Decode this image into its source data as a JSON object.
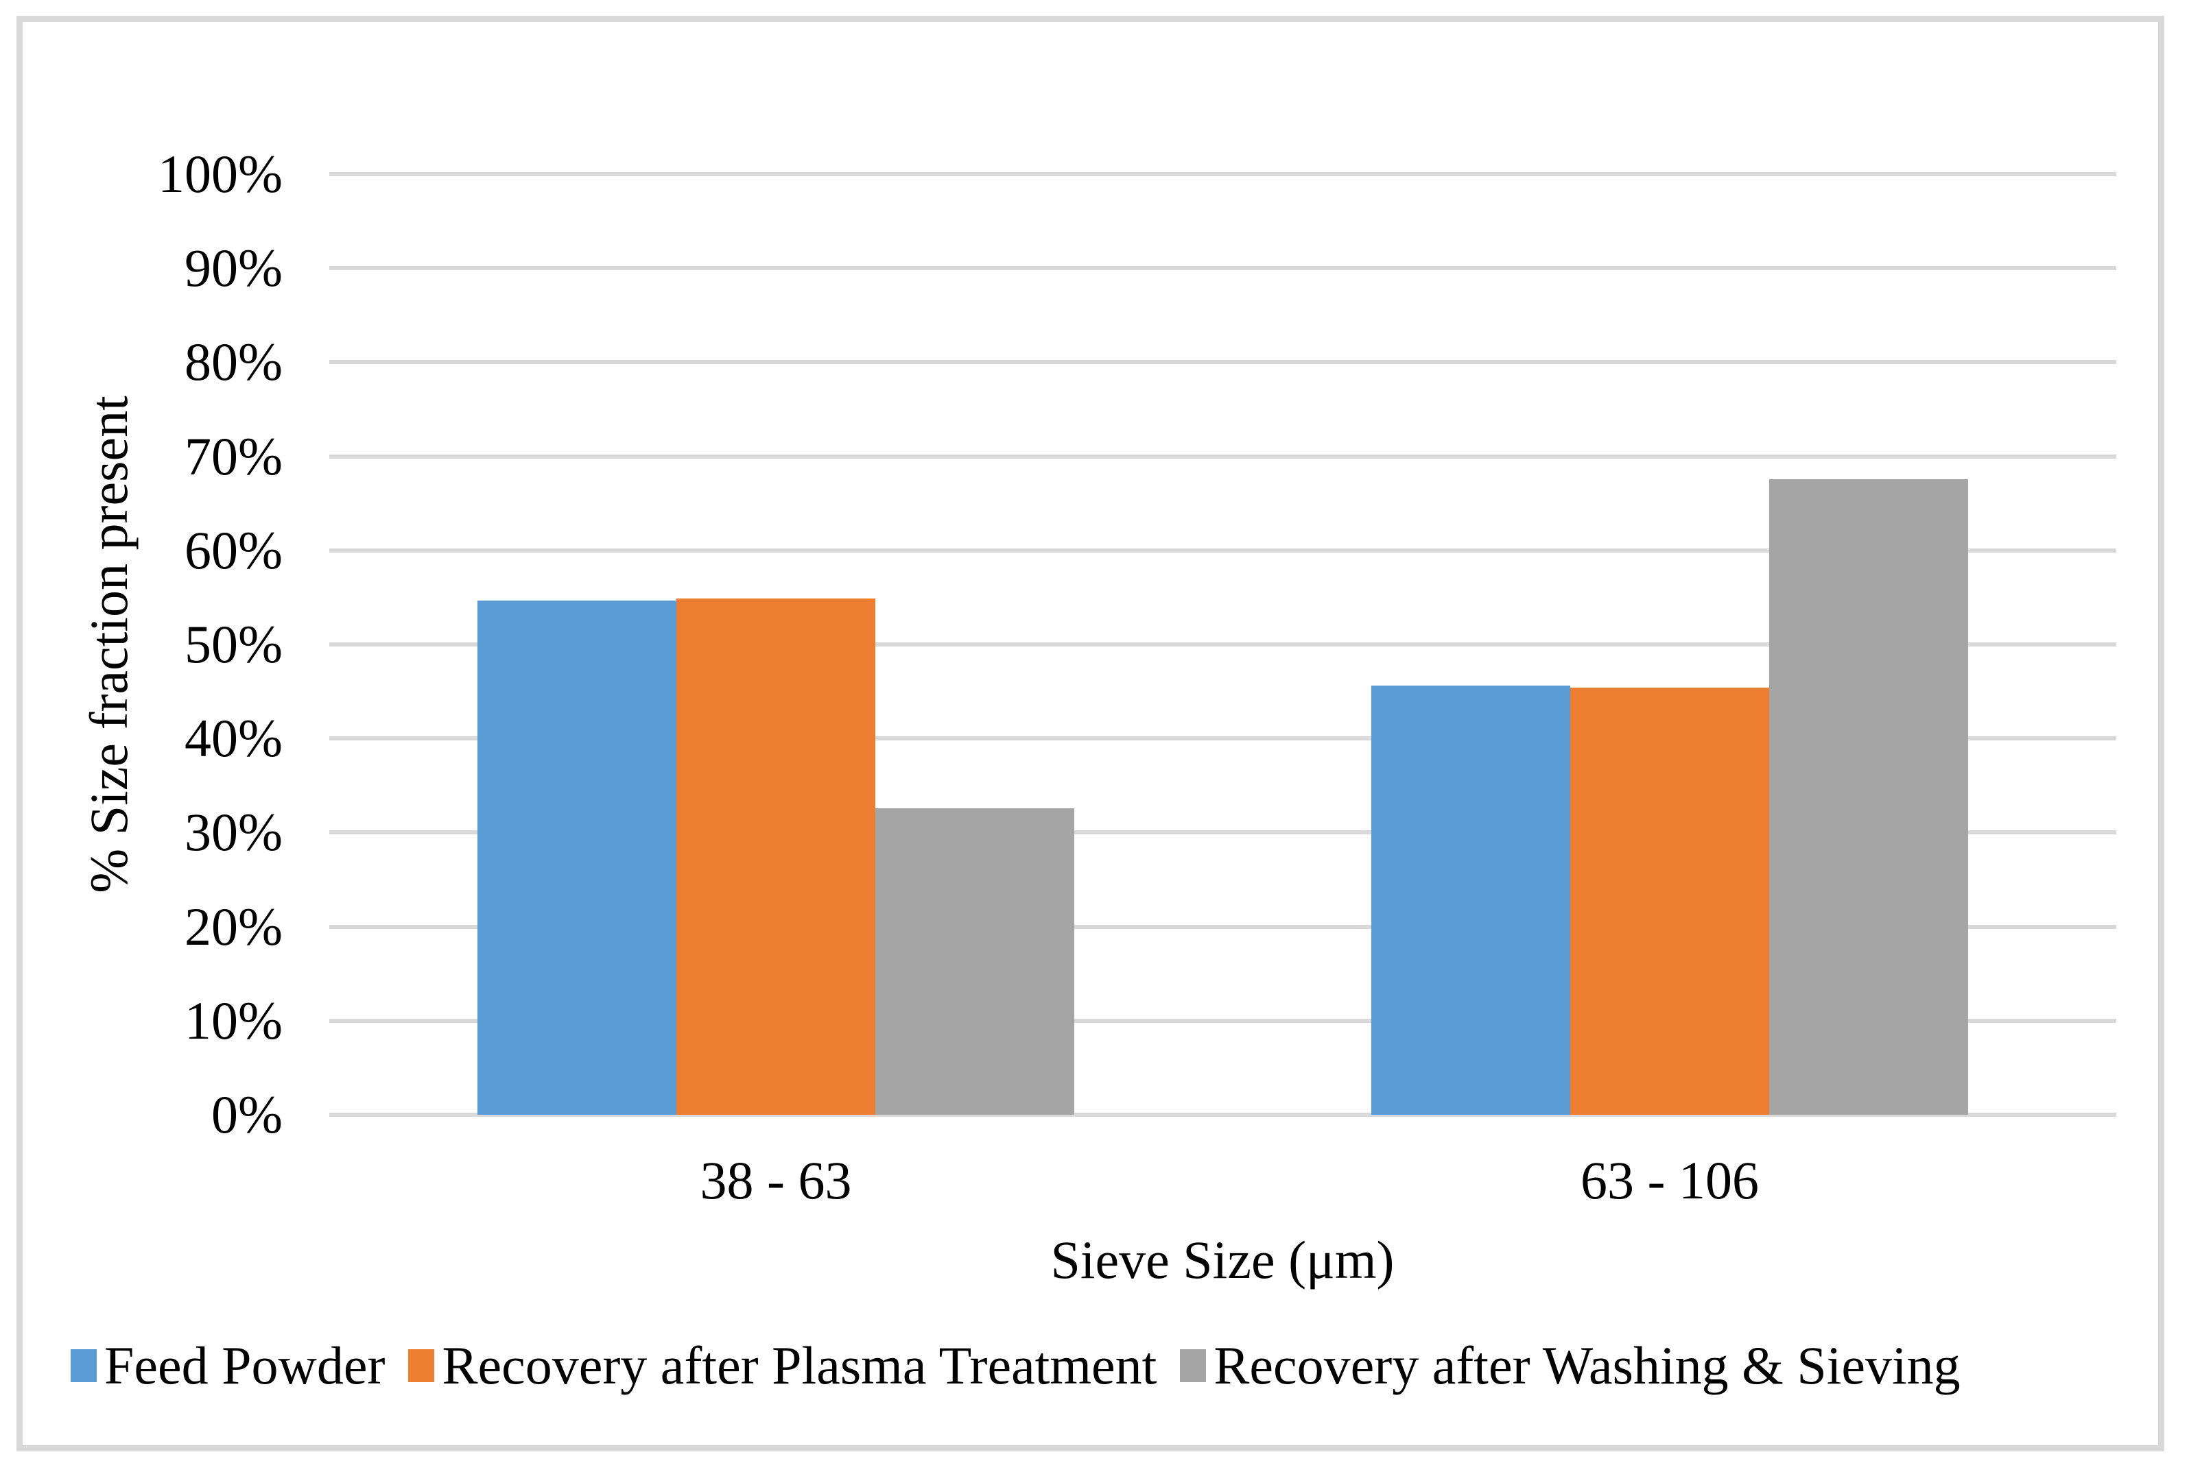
{
  "figure": {
    "background_color": "#FFFFFF",
    "frame_color": "#D9D9D9"
  },
  "chart_data": {
    "type": "bar",
    "title": "",
    "xlabel": "Sieve Size (μm)",
    "ylabel": "% Size fraction present",
    "categories": [
      "38 - 63",
      "63 - 106"
    ],
    "series": [
      {
        "name": "Feed Powder",
        "color": "#5B9BD5",
        "values": [
          54.7,
          45.6
        ]
      },
      {
        "name": "Recovery after Plasma Treatment",
        "color": "#ED7D31",
        "values": [
          54.9,
          45.4
        ]
      },
      {
        "name": "Recovery after Washing & Sieving",
        "color": "#A5A5A5",
        "values": [
          32.6,
          67.6
        ]
      }
    ],
    "y_axis": {
      "min": 0,
      "max": 100,
      "step": 10,
      "tick_labels": [
        "0%",
        "10%",
        "20%",
        "30%",
        "40%",
        "50%",
        "60%",
        "70%",
        "80%",
        "90%",
        "100%"
      ]
    },
    "x_axis": {
      "tick_labels": [
        "38 - 63",
        "63 - 106"
      ]
    },
    "gridlines": {
      "horizontal": true,
      "vertical": false,
      "color": "#D9D9D9"
    },
    "legend": {
      "position": "bottom-left",
      "items": [
        "Feed Powder",
        "Recovery after Plasma Treatment",
        "Recovery after Washing & Sieving"
      ]
    }
  }
}
